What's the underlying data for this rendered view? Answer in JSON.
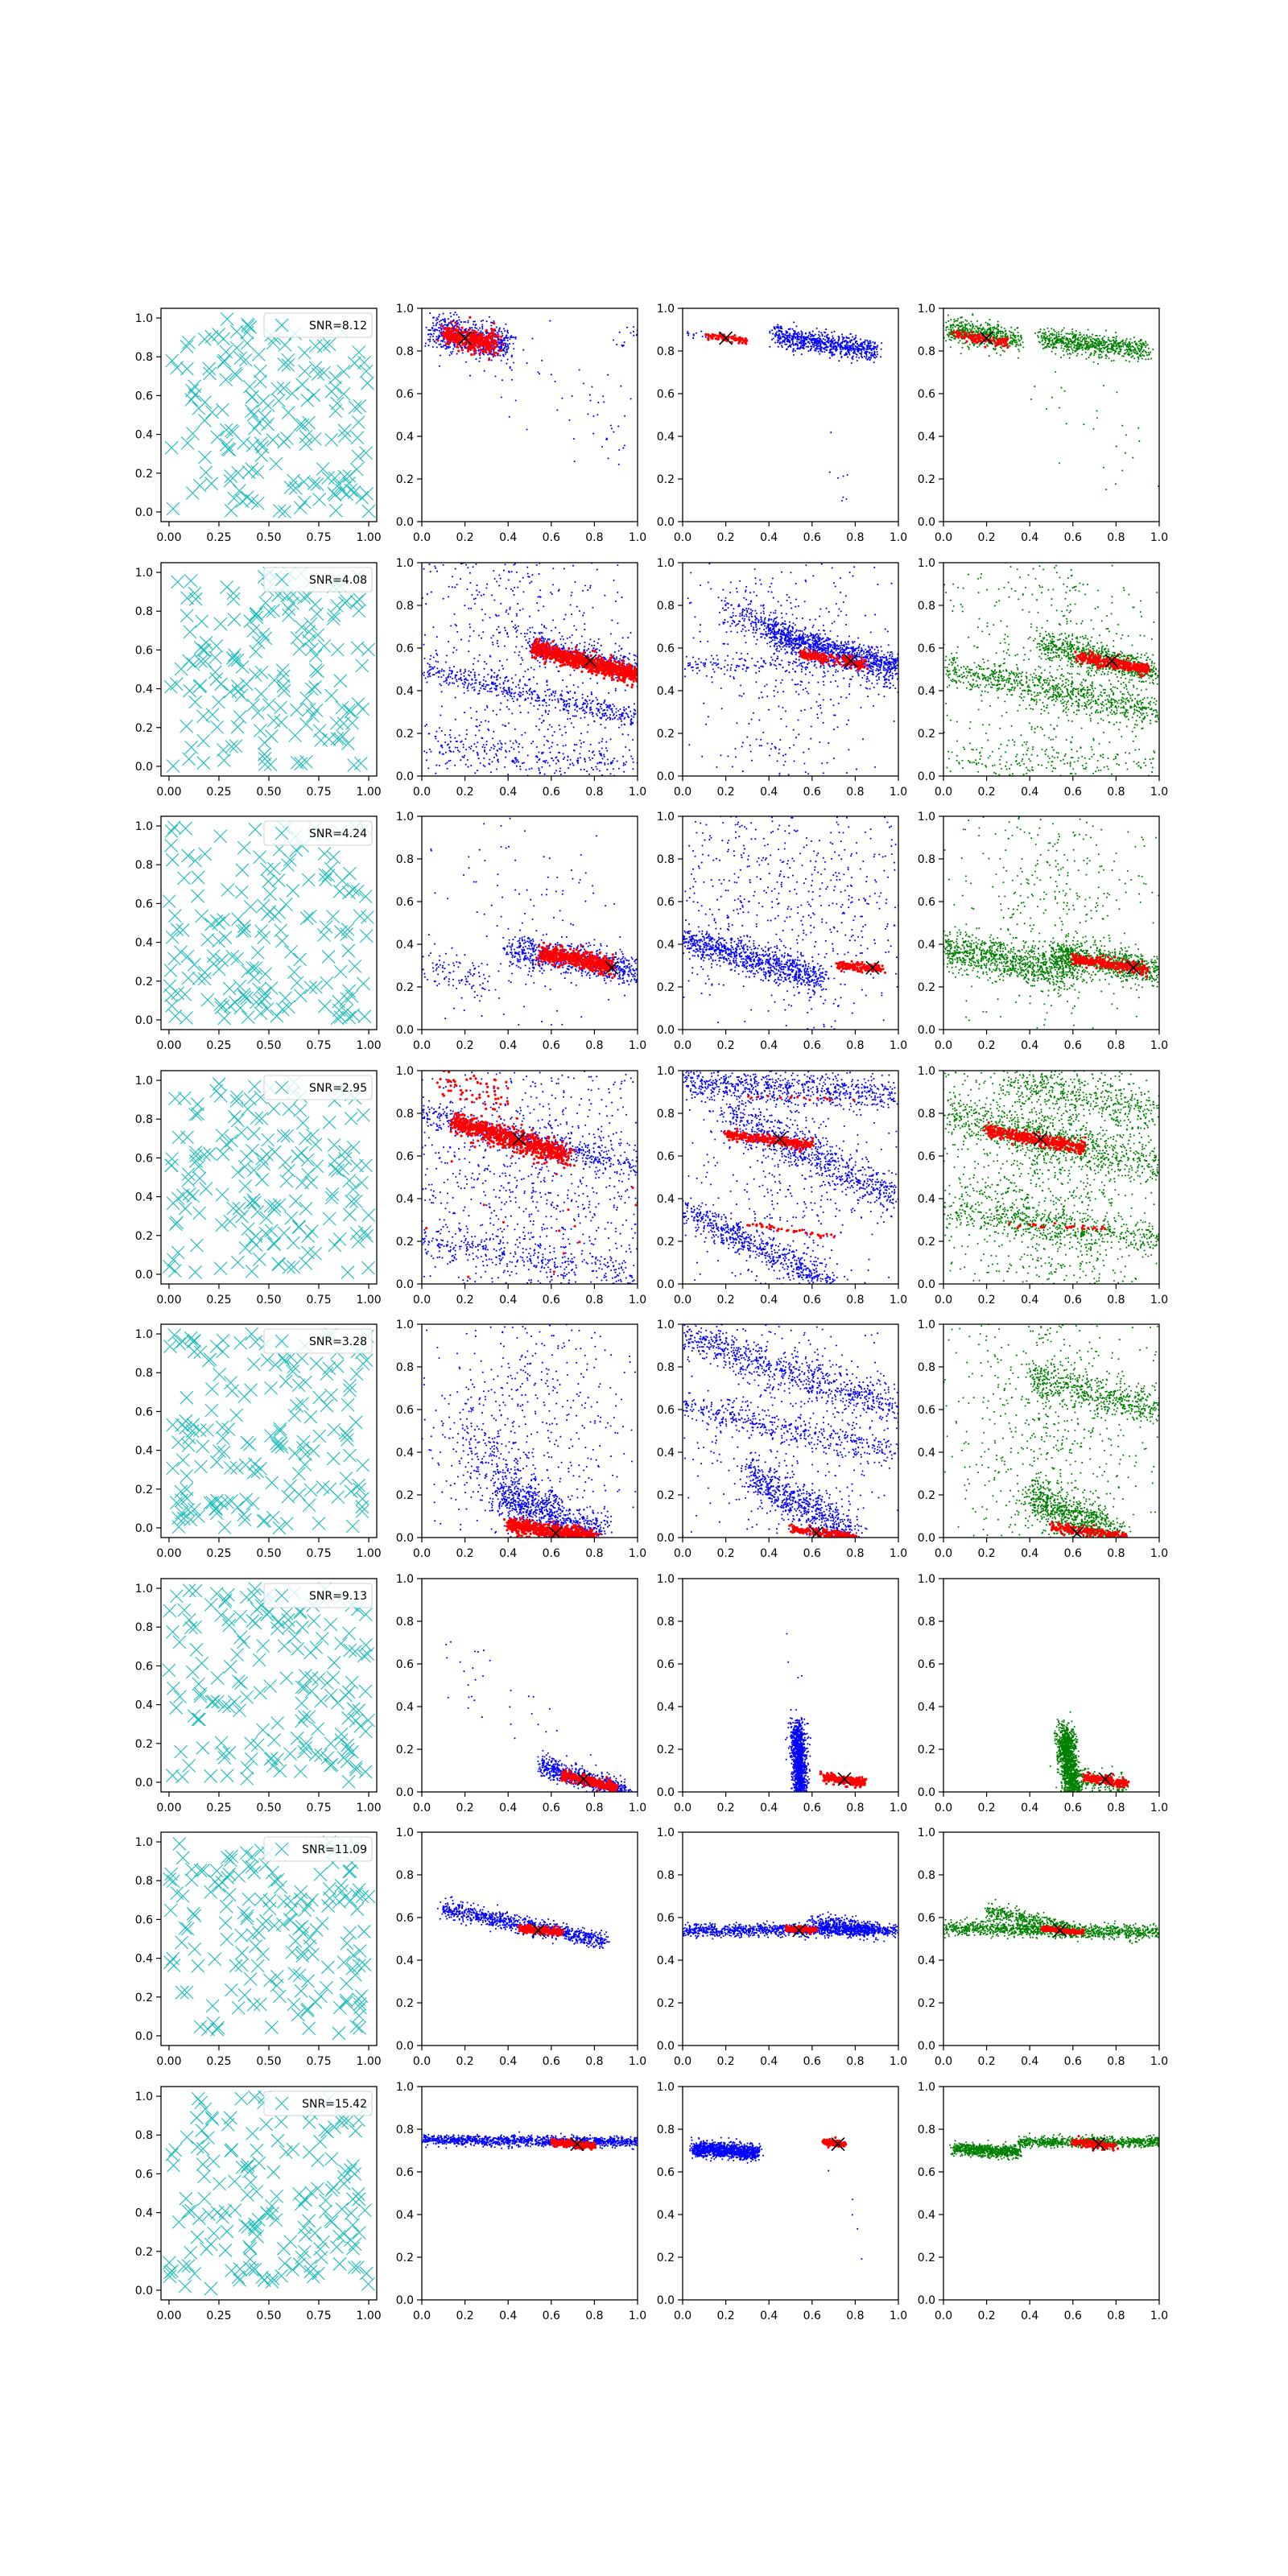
{
  "figure": {
    "background": "#ffffff"
  },
  "style": {
    "cross_color": "#1bbcbc",
    "blue": "#0000ff",
    "red": "#ff0000",
    "green": "#008000",
    "marker_color": "#000000"
  },
  "chart_data": {
    "type": "scatter",
    "layout": {
      "rows": 8,
      "cols": 4
    },
    "random_col": {
      "xticks": [
        "0.00",
        "0.25",
        "0.50",
        "0.75",
        "1.00"
      ],
      "yticks": [
        "0.0",
        "0.2",
        "0.4",
        "0.6",
        "0.8",
        "1.0"
      ],
      "xlim": [
        -0.04,
        1.04
      ],
      "ylim": [
        -0.05,
        1.05
      ],
      "legend_loc": "upper right",
      "num_points": 170
    },
    "scatter_cols": {
      "xticks": [
        "0.0",
        "0.2",
        "0.4",
        "0.6",
        "0.8",
        "1.0"
      ],
      "yticks": [
        "0.0",
        "0.2",
        "0.4",
        "0.6",
        "0.8",
        "1.0"
      ],
      "xlim": [
        0,
        1
      ],
      "ylim": [
        0,
        1
      ]
    },
    "rows": [
      {
        "snr": "SNR=8.12",
        "marker": [
          0.2,
          0.86
        ],
        "red": [
          {
            "x0": 0.1,
            "y0": 0.88,
            "x1": 0.35,
            "y1": 0.83,
            "w": 0.025,
            "n": 350
          }
        ],
        "blue": [
          {
            "x0": 0.05,
            "y0": 0.9,
            "x1": 0.4,
            "y1": 0.82,
            "w": 0.04,
            "n": 700
          },
          {
            "x0": 0.35,
            "y0": 0.8,
            "x1": 0.95,
            "y1": 0.4,
            "w": 0.12,
            "n": 60
          },
          {
            "x0": 0.9,
            "y0": 0.86,
            "x1": 1.0,
            "y1": 0.9,
            "w": 0.03,
            "n": 15
          }
        ],
        "blue2": [
          {
            "x0": 0.02,
            "y0": 0.88,
            "x1": 0.2,
            "y1": 0.86,
            "w": 0.012,
            "n": 20
          },
          {
            "x0": 0.42,
            "y0": 0.87,
            "x1": 0.9,
            "y1": 0.8,
            "w": 0.025,
            "n": 800
          },
          {
            "x0": 0.55,
            "y0": 0.55,
            "x1": 0.8,
            "y1": 0.1,
            "w": 0.05,
            "n": 8
          }
        ],
        "red2": [
          {
            "x0": 0.1,
            "y0": 0.87,
            "x1": 0.3,
            "y1": 0.85,
            "w": 0.008,
            "n": 80
          }
        ],
        "green": [
          {
            "x0": 0.02,
            "y0": 0.9,
            "x1": 0.35,
            "y1": 0.85,
            "w": 0.03,
            "n": 500
          },
          {
            "x0": 0.45,
            "y0": 0.86,
            "x1": 0.95,
            "y1": 0.8,
            "w": 0.025,
            "n": 700
          },
          {
            "x0": 0.5,
            "y0": 0.6,
            "x1": 1.0,
            "y1": 0.3,
            "w": 0.15,
            "n": 30
          }
        ],
        "red3": [
          {
            "x0": 0.05,
            "y0": 0.88,
            "x1": 0.3,
            "y1": 0.84,
            "w": 0.012,
            "n": 120
          }
        ]
      },
      {
        "snr": "SNR=4.08",
        "marker": [
          0.78,
          0.54
        ],
        "red": [
          {
            "x0": 0.52,
            "y0": 0.6,
            "x1": 1.0,
            "y1": 0.47,
            "w": 0.02,
            "n": 900
          }
        ],
        "blue": [
          {
            "x0": 0.0,
            "y0": 0.5,
            "x1": 1.0,
            "y1": 0.27,
            "w": 0.03,
            "n": 500
          },
          {
            "x0": 0.5,
            "y0": 0.62,
            "x1": 1.0,
            "y1": 0.5,
            "w": 0.03,
            "n": 400
          },
          {
            "x0": 0.0,
            "y0": 0.15,
            "x1": 1.0,
            "y1": 0.05,
            "w": 0.05,
            "n": 300
          },
          {
            "x0": 0.5,
            "y0": 0.7,
            "x1": 0.5,
            "y1": 0.7,
            "w": 0.45,
            "n": 700
          }
        ],
        "blue2": [
          {
            "x0": 0.0,
            "y0": 0.52,
            "x1": 1.0,
            "y1": 0.53,
            "w": 0.02,
            "n": 200
          },
          {
            "x0": 0.2,
            "y0": 0.78,
            "x1": 1.0,
            "y1": 0.45,
            "w": 0.04,
            "n": 600
          },
          {
            "x0": 0.4,
            "y0": 0.66,
            "x1": 1.0,
            "y1": 0.52,
            "w": 0.03,
            "n": 700
          },
          {
            "x0": 0.5,
            "y0": 0.5,
            "x1": 0.5,
            "y1": 0.5,
            "w": 0.45,
            "n": 500
          }
        ],
        "red2": [
          {
            "x0": 0.55,
            "y0": 0.57,
            "x1": 0.85,
            "y1": 0.52,
            "w": 0.012,
            "n": 200
          }
        ],
        "green": [
          {
            "x0": 0.0,
            "y0": 0.5,
            "x1": 1.0,
            "y1": 0.3,
            "w": 0.04,
            "n": 800
          },
          {
            "x0": 0.45,
            "y0": 0.62,
            "x1": 1.0,
            "y1": 0.48,
            "w": 0.035,
            "n": 700
          },
          {
            "x0": 0.5,
            "y0": 0.6,
            "x1": 0.5,
            "y1": 0.6,
            "w": 0.45,
            "n": 600
          },
          {
            "x0": 0.0,
            "y0": 0.1,
            "x1": 1.0,
            "y1": 0.05,
            "w": 0.05,
            "n": 200
          }
        ],
        "red3": [
          {
            "x0": 0.62,
            "y0": 0.56,
            "x1": 0.95,
            "y1": 0.5,
            "w": 0.015,
            "n": 300
          }
        ]
      },
      {
        "snr": "SNR=4.24",
        "marker": [
          0.88,
          0.29
        ],
        "red": [
          {
            "x0": 0.55,
            "y0": 0.36,
            "x1": 0.88,
            "y1": 0.3,
            "w": 0.02,
            "n": 500
          }
        ],
        "blue": [
          {
            "x0": 0.4,
            "y0": 0.38,
            "x1": 1.0,
            "y1": 0.27,
            "w": 0.035,
            "n": 700
          },
          {
            "x0": 0.0,
            "y0": 0.3,
            "x1": 0.3,
            "y1": 0.22,
            "w": 0.04,
            "n": 100
          },
          {
            "x0": 0.5,
            "y0": 0.5,
            "x1": 0.5,
            "y1": 0.5,
            "w": 0.45,
            "n": 200
          }
        ],
        "blue2": [
          {
            "x0": 0.0,
            "y0": 0.42,
            "x1": 0.65,
            "y1": 0.24,
            "w": 0.035,
            "n": 900
          },
          {
            "x0": 0.0,
            "y0": 0.7,
            "x1": 1.0,
            "y1": 0.5,
            "w": 0.3,
            "n": 700
          }
        ],
        "red2": [
          {
            "x0": 0.72,
            "y0": 0.3,
            "x1": 0.93,
            "y1": 0.28,
            "w": 0.01,
            "n": 150
          }
        ],
        "green": [
          {
            "x0": 0.0,
            "y0": 0.38,
            "x1": 0.6,
            "y1": 0.26,
            "w": 0.045,
            "n": 900
          },
          {
            "x0": 0.5,
            "y0": 0.36,
            "x1": 1.0,
            "y1": 0.27,
            "w": 0.035,
            "n": 800
          },
          {
            "x0": 0.5,
            "y0": 0.6,
            "x1": 0.5,
            "y1": 0.6,
            "w": 0.4,
            "n": 500
          }
        ],
        "red3": [
          {
            "x0": 0.6,
            "y0": 0.33,
            "x1": 0.95,
            "y1": 0.28,
            "w": 0.012,
            "n": 250
          }
        ]
      },
      {
        "snr": "SNR=2.95",
        "marker": [
          0.45,
          0.68
        ],
        "red": [
          {
            "x0": 0.15,
            "y0": 0.76,
            "x1": 0.68,
            "y1": 0.6,
            "w": 0.025,
            "n": 800
          },
          {
            "x0": 0.1,
            "y0": 0.95,
            "x1": 0.4,
            "y1": 0.85,
            "w": 0.05,
            "n": 60
          },
          {
            "x0": 0.0,
            "y0": 0.3,
            "x1": 1.0,
            "y1": 0.25,
            "w": 0.2,
            "n": 20
          }
        ],
        "blue": [
          {
            "x0": 0.0,
            "y0": 0.5,
            "x1": 1.0,
            "y1": 0.5,
            "w": 0.45,
            "n": 1400
          },
          {
            "x0": 0.0,
            "y0": 0.8,
            "x1": 1.0,
            "y1": 0.55,
            "w": 0.03,
            "n": 500
          },
          {
            "x0": 0.0,
            "y0": 0.2,
            "x1": 1.0,
            "y1": 0.05,
            "w": 0.04,
            "n": 300
          }
        ],
        "blue2": [
          {
            "x0": 0.0,
            "y0": 0.95,
            "x1": 1.0,
            "y1": 0.88,
            "w": 0.04,
            "n": 700
          },
          {
            "x0": 0.0,
            "y0": 0.35,
            "x1": 0.7,
            "y1": 0.0,
            "w": 0.035,
            "n": 600
          },
          {
            "x0": 0.2,
            "y0": 0.8,
            "x1": 1.0,
            "y1": 0.4,
            "w": 0.05,
            "n": 700
          },
          {
            "x0": 0.5,
            "y0": 0.5,
            "x1": 0.5,
            "y1": 0.5,
            "w": 0.45,
            "n": 600
          }
        ],
        "red2": [
          {
            "x0": 0.2,
            "y0": 0.7,
            "x1": 0.6,
            "y1": 0.65,
            "w": 0.012,
            "n": 300
          },
          {
            "x0": 0.3,
            "y0": 0.28,
            "x1": 0.7,
            "y1": 0.22,
            "w": 0.006,
            "n": 40
          },
          {
            "x0": 0.3,
            "y0": 0.88,
            "x1": 0.8,
            "y1": 0.86,
            "w": 0.005,
            "n": 15
          }
        ],
        "green": [
          {
            "x0": 0.5,
            "y0": 0.5,
            "x1": 0.5,
            "y1": 0.5,
            "w": 0.45,
            "n": 1500
          },
          {
            "x0": 0.0,
            "y0": 0.35,
            "x1": 1.0,
            "y1": 0.2,
            "w": 0.04,
            "n": 500
          },
          {
            "x0": 0.0,
            "y0": 0.8,
            "x1": 1.0,
            "y1": 0.55,
            "w": 0.05,
            "n": 700
          },
          {
            "x0": 0.3,
            "y0": 0.95,
            "x1": 1.0,
            "y1": 0.8,
            "w": 0.05,
            "n": 400
          }
        ],
        "red3": [
          {
            "x0": 0.2,
            "y0": 0.72,
            "x1": 0.65,
            "y1": 0.64,
            "w": 0.015,
            "n": 400
          },
          {
            "x0": 0.3,
            "y0": 0.28,
            "x1": 0.75,
            "y1": 0.26,
            "w": 0.006,
            "n": 30
          }
        ]
      },
      {
        "snr": "SNR=3.28",
        "marker": [
          0.62,
          0.02
        ],
        "red": [
          {
            "x0": 0.4,
            "y0": 0.06,
            "x1": 0.8,
            "y1": 0.0,
            "w": 0.018,
            "n": 600
          }
        ],
        "blue": [
          {
            "x0": 0.5,
            "y0": 0.5,
            "x1": 0.5,
            "y1": 0.5,
            "w": 0.45,
            "n": 700
          },
          {
            "x0": 0.35,
            "y0": 0.2,
            "x1": 0.85,
            "y1": 0.0,
            "w": 0.05,
            "n": 700
          },
          {
            "x0": 0.2,
            "y0": 0.5,
            "x1": 0.6,
            "y1": 0.05,
            "w": 0.08,
            "n": 300
          }
        ],
        "blue2": [
          {
            "x0": 0.0,
            "y0": 0.95,
            "x1": 1.0,
            "y1": 0.6,
            "w": 0.05,
            "n": 800
          },
          {
            "x0": 0.0,
            "y0": 0.62,
            "x1": 1.0,
            "y1": 0.4,
            "w": 0.035,
            "n": 400
          },
          {
            "x0": 0.3,
            "y0": 0.3,
            "x1": 0.8,
            "y1": 0.0,
            "w": 0.05,
            "n": 700
          },
          {
            "x0": 0.5,
            "y0": 0.5,
            "x1": 0.5,
            "y1": 0.5,
            "w": 0.45,
            "n": 500
          }
        ],
        "red2": [
          {
            "x0": 0.5,
            "y0": 0.04,
            "x1": 0.8,
            "y1": 0.0,
            "w": 0.01,
            "n": 200
          }
        ],
        "green": [
          {
            "x0": 0.5,
            "y0": 0.5,
            "x1": 0.5,
            "y1": 0.5,
            "w": 0.45,
            "n": 900
          },
          {
            "x0": 0.4,
            "y0": 0.75,
            "x1": 1.0,
            "y1": 0.6,
            "w": 0.04,
            "n": 500
          },
          {
            "x0": 0.4,
            "y0": 0.2,
            "x1": 0.8,
            "y1": 0.0,
            "w": 0.05,
            "n": 800
          }
        ],
        "red3": [
          {
            "x0": 0.5,
            "y0": 0.05,
            "x1": 0.85,
            "y1": 0.0,
            "w": 0.012,
            "n": 200
          }
        ]
      },
      {
        "snr": "SNR=9.13",
        "marker": [
          0.75,
          0.06
        ],
        "red": [
          {
            "x0": 0.65,
            "y0": 0.08,
            "x1": 0.9,
            "y1": 0.02,
            "w": 0.012,
            "n": 300
          }
        ],
        "blue": [
          {
            "x0": 0.55,
            "y0": 0.12,
            "x1": 0.95,
            "y1": 0.0,
            "w": 0.025,
            "n": 700
          },
          {
            "x0": 0.1,
            "y0": 0.7,
            "x1": 0.8,
            "y1": 0.05,
            "w": 0.08,
            "n": 40
          }
        ],
        "blue2": [
          {
            "x0": 0.53,
            "y0": 0.3,
            "x1": 0.55,
            "y1": 0.0,
            "w": 0.03,
            "n": 1100
          },
          {
            "x0": 0.45,
            "y0": 0.9,
            "x1": 0.55,
            "y1": 0.3,
            "w": 0.04,
            "n": 6
          }
        ],
        "red2": [
          {
            "x0": 0.65,
            "y0": 0.07,
            "x1": 0.85,
            "y1": 0.04,
            "w": 0.01,
            "n": 250
          }
        ],
        "green": [
          {
            "x0": 0.56,
            "y0": 0.28,
            "x1": 0.6,
            "y1": 0.0,
            "w": 0.035,
            "n": 1300
          },
          {
            "x0": 0.6,
            "y0": 0.06,
            "x1": 0.85,
            "y1": 0.02,
            "w": 0.03,
            "n": 200
          }
        ],
        "red3": [
          {
            "x0": 0.65,
            "y0": 0.07,
            "x1": 0.85,
            "y1": 0.04,
            "w": 0.01,
            "n": 200
          }
        ]
      },
      {
        "snr": "SNR=11.09",
        "marker": [
          0.54,
          0.54
        ],
        "red": [
          {
            "x0": 0.45,
            "y0": 0.55,
            "x1": 0.65,
            "y1": 0.53,
            "w": 0.008,
            "n": 250
          }
        ],
        "blue": [
          {
            "x0": 0.1,
            "y0": 0.64,
            "x1": 0.85,
            "y1": 0.49,
            "w": 0.02,
            "n": 900
          }
        ],
        "blue2": [
          {
            "x0": 0.0,
            "y0": 0.54,
            "x1": 1.0,
            "y1": 0.54,
            "w": 0.015,
            "n": 1100
          },
          {
            "x0": 0.6,
            "y0": 0.58,
            "x1": 0.9,
            "y1": 0.54,
            "w": 0.02,
            "n": 400
          }
        ],
        "red2": [
          {
            "x0": 0.48,
            "y0": 0.55,
            "x1": 0.62,
            "y1": 0.54,
            "w": 0.006,
            "n": 150
          }
        ],
        "green": [
          {
            "x0": 0.0,
            "y0": 0.55,
            "x1": 1.0,
            "y1": 0.53,
            "w": 0.018,
            "n": 1100
          },
          {
            "x0": 0.2,
            "y0": 0.63,
            "x1": 0.6,
            "y1": 0.54,
            "w": 0.02,
            "n": 400
          }
        ],
        "red3": [
          {
            "x0": 0.45,
            "y0": 0.55,
            "x1": 0.65,
            "y1": 0.53,
            "w": 0.006,
            "n": 150
          }
        ]
      },
      {
        "snr": "SNR=15.42",
        "marker": [
          0.72,
          0.73
        ],
        "red": [
          {
            "x0": 0.6,
            "y0": 0.74,
            "x1": 0.8,
            "y1": 0.72,
            "w": 0.008,
            "n": 250
          }
        ],
        "blue": [
          {
            "x0": 0.0,
            "y0": 0.75,
            "x1": 1.0,
            "y1": 0.74,
            "w": 0.012,
            "n": 1200
          }
        ],
        "blue2": [
          {
            "x0": 0.05,
            "y0": 0.71,
            "x1": 0.35,
            "y1": 0.69,
            "w": 0.018,
            "n": 1100
          },
          {
            "x0": 0.6,
            "y0": 0.7,
            "x1": 0.9,
            "y1": 0.2,
            "w": 0.05,
            "n": 5
          }
        ],
        "red2": [
          {
            "x0": 0.65,
            "y0": 0.74,
            "x1": 0.75,
            "y1": 0.73,
            "w": 0.008,
            "n": 120
          }
        ],
        "green": [
          {
            "x0": 0.05,
            "y0": 0.71,
            "x1": 0.35,
            "y1": 0.69,
            "w": 0.015,
            "n": 700
          },
          {
            "x0": 0.35,
            "y0": 0.74,
            "x1": 1.0,
            "y1": 0.74,
            "w": 0.012,
            "n": 800
          }
        ],
        "red3": [
          {
            "x0": 0.6,
            "y0": 0.74,
            "x1": 0.8,
            "y1": 0.72,
            "w": 0.008,
            "n": 180
          }
        ]
      }
    ]
  }
}
